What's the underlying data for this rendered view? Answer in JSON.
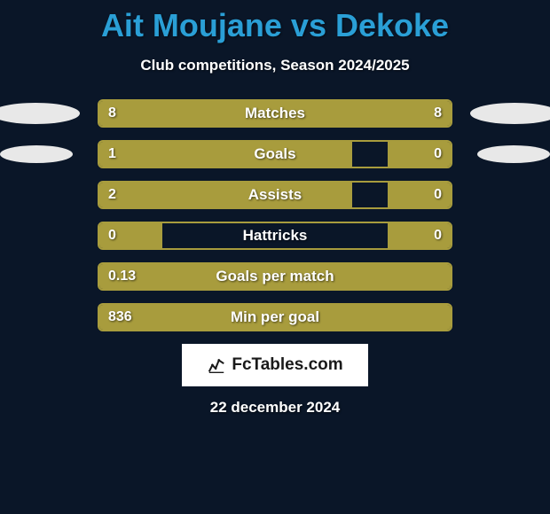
{
  "title": "Ait Moujane vs Dekoke",
  "subtitle": "Club competitions, Season 2024/2025",
  "date": "22 december 2024",
  "logo_text": "FcTables.com",
  "colors": {
    "background": "#0a1628",
    "title": "#2a9fd6",
    "bar_fill": "#a89c3d",
    "bar_border": "#a89c3d",
    "text": "#ffffff",
    "ellipse": "#e8e8e8",
    "logo_bg": "#ffffff",
    "logo_text": "#1a1a1a"
  },
  "stats": [
    {
      "label": "Matches",
      "left_value": "8",
      "right_value": "8",
      "left_pct": 50,
      "right_pct": 50,
      "show_ellipse": "big"
    },
    {
      "label": "Goals",
      "left_value": "1",
      "right_value": "0",
      "left_pct": 72,
      "right_pct": 18,
      "show_ellipse": "small"
    },
    {
      "label": "Assists",
      "left_value": "2",
      "right_value": "0",
      "left_pct": 72,
      "right_pct": 18,
      "show_ellipse": "none"
    },
    {
      "label": "Hattricks",
      "left_value": "0",
      "right_value": "0",
      "left_pct": 18,
      "right_pct": 18,
      "show_ellipse": "none"
    },
    {
      "label": "Goals per match",
      "left_value": "0.13",
      "right_value": "",
      "left_pct": 100,
      "right_pct": 0,
      "show_ellipse": "none"
    },
    {
      "label": "Min per goal",
      "left_value": "836",
      "right_value": "",
      "left_pct": 100,
      "right_pct": 0,
      "show_ellipse": "none"
    }
  ]
}
